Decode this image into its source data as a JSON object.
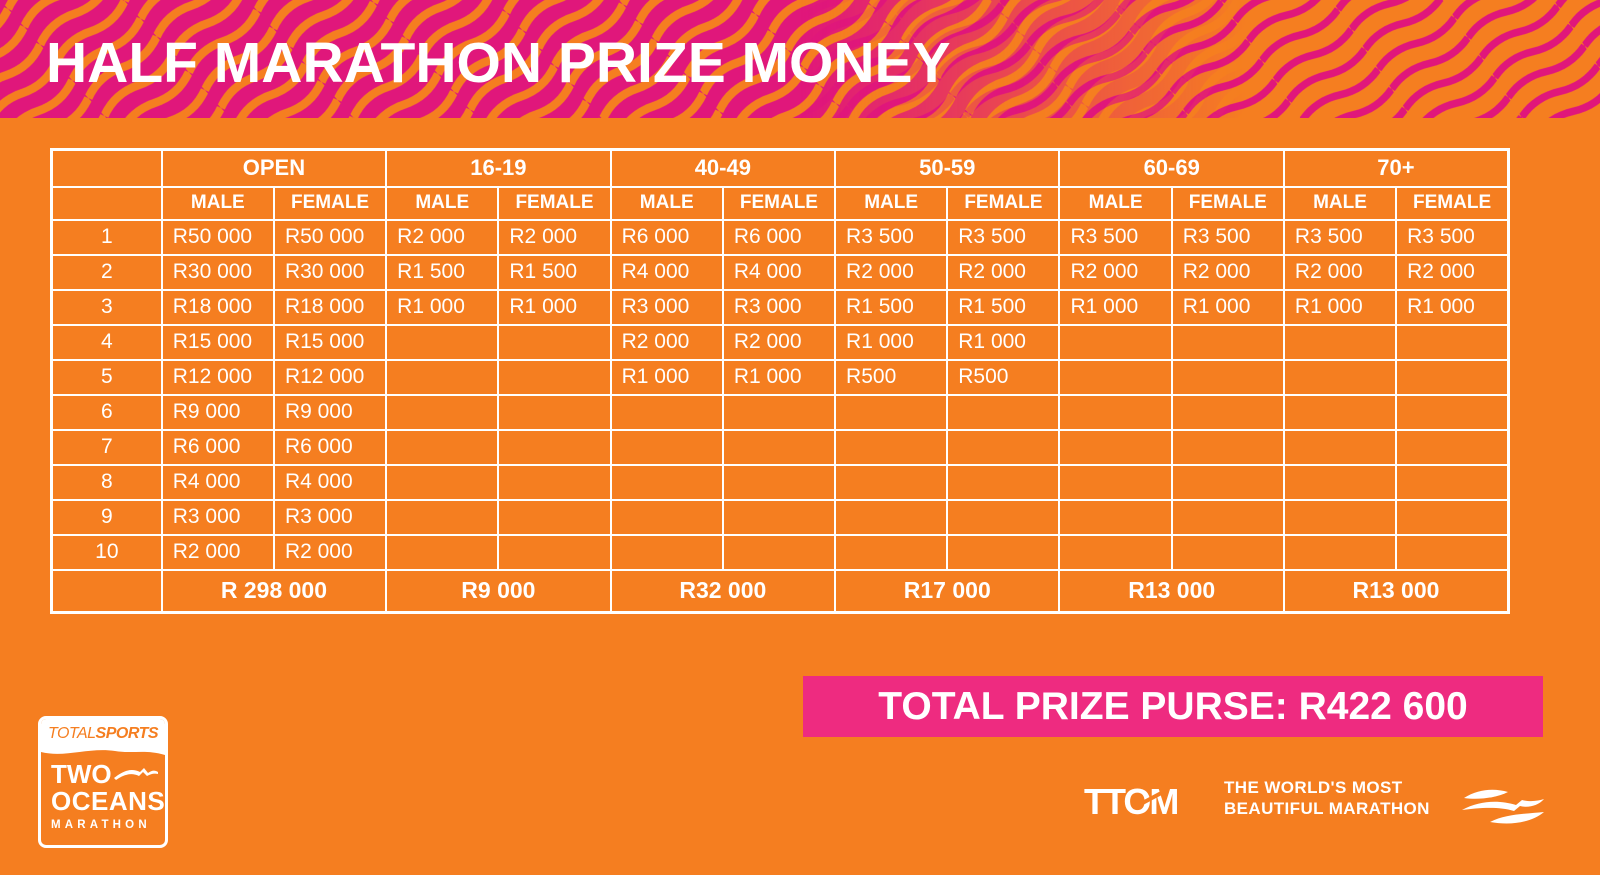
{
  "page": {
    "title": "HALF MARATHON PRIZE MONEY"
  },
  "colors": {
    "background_orange": "#F57E20",
    "banner_pink": "#E0177B",
    "purse_pink": "#EE2B80",
    "cell_text_cream": "#FCF4E6",
    "white": "#FFFFFF"
  },
  "table": {
    "groups": [
      "OPEN",
      "16-19",
      "40-49",
      "50-59",
      "60-69",
      "70+"
    ],
    "sub_headers": [
      "MALE",
      "FEMALE"
    ],
    "rows": [
      {
        "rank": "1",
        "values": [
          "R50 000",
          "R50 000",
          "R2 000",
          "R2 000",
          "R6 000",
          "R6 000",
          "R3 500",
          "R3 500",
          "R3 500",
          "R3 500",
          "R3 500",
          "R3 500"
        ]
      },
      {
        "rank": "2",
        "values": [
          "R30 000",
          "R30 000",
          "R1 500",
          "R1 500",
          "R4 000",
          "R4 000",
          "R2 000",
          "R2 000",
          "R2 000",
          "R2 000",
          "R2 000",
          "R2 000"
        ]
      },
      {
        "rank": "3",
        "values": [
          "R18 000",
          "R18 000",
          "R1 000",
          "R1 000",
          "R3 000",
          "R3 000",
          "R1 500",
          "R1 500",
          "R1 000",
          "R1 000",
          "R1 000",
          "R1 000"
        ]
      },
      {
        "rank": "4",
        "values": [
          "R15 000",
          "R15 000",
          "",
          "",
          "R2 000",
          "R2 000",
          "R1 000",
          "R1 000",
          "",
          "",
          "",
          ""
        ]
      },
      {
        "rank": "5",
        "values": [
          "R12 000",
          "R12 000",
          "",
          "",
          "R1 000",
          "R1 000",
          "R500",
          "R500",
          "",
          "",
          "",
          ""
        ]
      },
      {
        "rank": "6",
        "values": [
          "R9 000",
          "R9 000",
          "",
          "",
          "",
          "",
          "",
          "",
          "",
          "",
          "",
          ""
        ]
      },
      {
        "rank": "7",
        "values": [
          "R6 000",
          "R6 000",
          "",
          "",
          "",
          "",
          "",
          "",
          "",
          "",
          "",
          ""
        ]
      },
      {
        "rank": "8",
        "values": [
          "R4 000",
          "R4 000",
          "",
          "",
          "",
          "",
          "",
          "",
          "",
          "",
          "",
          ""
        ]
      },
      {
        "rank": "9",
        "values": [
          "R3 000",
          "R3 000",
          "",
          "",
          "",
          "",
          "",
          "",
          "",
          "",
          "",
          ""
        ]
      },
      {
        "rank": "10",
        "values": [
          "R2 000",
          "R2 000",
          "",
          "",
          "",
          "",
          "",
          "",
          "",
          "",
          "",
          ""
        ]
      }
    ],
    "totals": [
      "R 298 000",
      "R9 000",
      "R32 000",
      "R17 000",
      "R13 000",
      "R13 000"
    ]
  },
  "purse": {
    "label": "TOTAL PRIZE PURSE: R422 600"
  },
  "footer": {
    "totalsports_logo": {
      "part1": "TOTAL",
      "part2": "SPORTS",
      "line1": "TWO",
      "line2": "OCEANS",
      "line3": "MARATHON"
    },
    "ttom_logo": "TTOM",
    "tagline_line1": "THE WORLD'S MOST",
    "tagline_line2": "BEAUTIFUL MARATHON",
    "icons": [
      "wave-icon"
    ]
  }
}
